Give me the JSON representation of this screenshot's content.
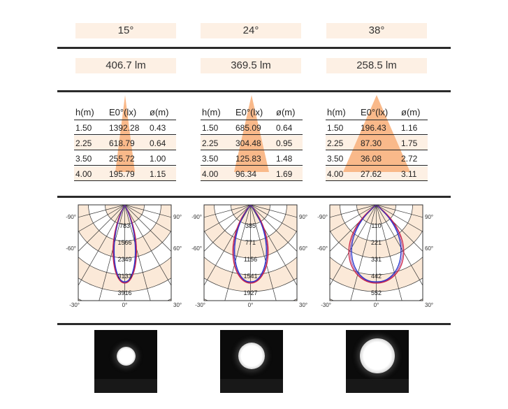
{
  "columns": [
    {
      "angle": "15°",
      "lumens": "406.7 lm",
      "table": {
        "headers": [
          "h(m)",
          "E0°(lx)",
          "ø(m)"
        ],
        "rows": [
          [
            "1.50",
            "1392.28",
            "0.43"
          ],
          [
            "2.25",
            "618.79",
            "0.64"
          ],
          [
            "3.50",
            "255.72",
            "1.00"
          ],
          [
            "4.00",
            "195.79",
            "1.15"
          ]
        ]
      },
      "polar": {
        "ring_labels": [
          "783",
          "1566",
          "2349",
          "3133",
          "3916"
        ],
        "angle_labels": {
          "left_top": "-90°",
          "right_top": "90°",
          "left_mid": "-60°",
          "right_mid": "60°",
          "left_bottom": "-30°",
          "center_bottom": "0°",
          "right_bottom": "30°"
        },
        "curve_half_width_fraction": 0.18
      },
      "beam_spot_diameter_fraction": 0.3
    },
    {
      "angle": "24°",
      "lumens": "369.5 lm",
      "table": {
        "headers": [
          "h(m)",
          "E0°(lx)",
          "ø(m)"
        ],
        "rows": [
          [
            "1.50",
            "685.09",
            "0.64"
          ],
          [
            "2.25",
            "304.48",
            "0.95"
          ],
          [
            "3.50",
            "125.83",
            "1.48"
          ],
          [
            "4.00",
            "96.34",
            "1.69"
          ]
        ]
      },
      "polar": {
        "ring_labels": [
          "385",
          "771",
          "1156",
          "1541",
          "1927"
        ],
        "angle_labels": {
          "left_top": "-90°",
          "right_top": "90°",
          "left_mid": "-60°",
          "right_mid": "60°",
          "left_bottom": "-30°",
          "center_bottom": "0°",
          "right_bottom": "30°"
        },
        "curve_half_width_fraction": 0.27
      },
      "beam_spot_diameter_fraction": 0.42
    },
    {
      "angle": "38°",
      "lumens": "258.5 lm",
      "table": {
        "headers": [
          "h(m)",
          "E0°(lx)",
          "ø(m)"
        ],
        "rows": [
          [
            "1.50",
            "196.43",
            "1.16"
          ],
          [
            "2.25",
            "87.30",
            "1.75"
          ],
          [
            "3.50",
            "36.08",
            "2.72"
          ],
          [
            "4.00",
            "27.62",
            "3.11"
          ]
        ]
      },
      "polar": {
        "ring_labels": [
          "110",
          "221",
          "331",
          "442",
          "552"
        ],
        "angle_labels": {
          "left_top": "-90°",
          "right_top": "90°",
          "left_mid": "-60°",
          "right_mid": "60°",
          "left_bottom": "-30°",
          "center_bottom": "0°",
          "right_bottom": "30°"
        },
        "curve_half_width_fraction": 0.42
      },
      "beam_spot_diameter_fraction": 0.55
    }
  ],
  "colors": {
    "panel": "#fdf0e4",
    "cone": "#f9b98a",
    "rule": "#2b2b2b",
    "curve_blue": "#2233cc",
    "curve_red": "#cc2244",
    "curve_purple": "#7a2a9a"
  }
}
